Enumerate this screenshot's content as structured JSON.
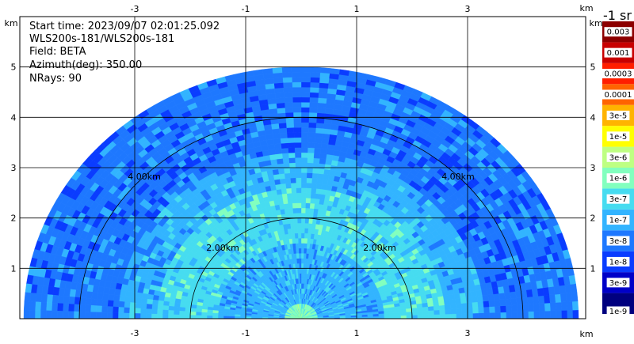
{
  "info": {
    "start_time": "Start time: 2023/09/07 02:01:25.092",
    "instrument": "WLS200s-181/WLS200s-181",
    "field": "Field: BETA",
    "azimuth": "Azimuth(deg): 350.00",
    "nrays": "NRays: 90"
  },
  "chart_data": {
    "type": "heatmap",
    "projection": "rhi-half-polar",
    "x_unit": "km",
    "y_unit": "km",
    "xlim": [
      -5,
      5.5
    ],
    "ylim": [
      0,
      6
    ],
    "x_ticks": [
      -3,
      -1,
      1,
      3
    ],
    "x_tick_labels": [
      "-3",
      "-1",
      "1",
      "3"
    ],
    "y_ticks": [
      1,
      2,
      3,
      4,
      5
    ],
    "y_tick_labels": [
      "1",
      "2",
      "3",
      "4",
      "5"
    ],
    "max_range_km": 5,
    "grid": true,
    "range_rings": [
      {
        "range_km": 2,
        "label": "2.00km"
      },
      {
        "range_km": 4,
        "label": "4.00km"
      }
    ],
    "n_rays": 90,
    "colorbar": {
      "title": "-1 sr",
      "levels": [
        "1e-9",
        "3e-9",
        "1e-8",
        "3e-8",
        "1e-7",
        "3e-7",
        "1e-6",
        "3e-6",
        "1e-5",
        "3e-5",
        "0.0001",
        "0.0003",
        "0.001",
        "0.003"
      ],
      "colors": [
        "#00007f",
        "#0000c8",
        "#0a3cff",
        "#1e78ff",
        "#32b4ff",
        "#46dcf0",
        "#82ffbe",
        "#beff82",
        "#ffff00",
        "#ffb400",
        "#ff6400",
        "#ff1e00",
        "#c80000",
        "#8c0000"
      ]
    },
    "bands": [
      {
        "range_km": [
          0.0,
          0.3
        ],
        "level_index": 6
      },
      {
        "range_km": [
          0.3,
          1.5
        ],
        "level_index": 4
      },
      {
        "range_km": [
          1.5,
          2.6
        ],
        "level_index": 5
      },
      {
        "range_km": [
          2.6,
          3.3
        ],
        "level_index": 4
      },
      {
        "range_km": [
          3.3,
          5.0
        ],
        "level_index": 3
      }
    ]
  }
}
